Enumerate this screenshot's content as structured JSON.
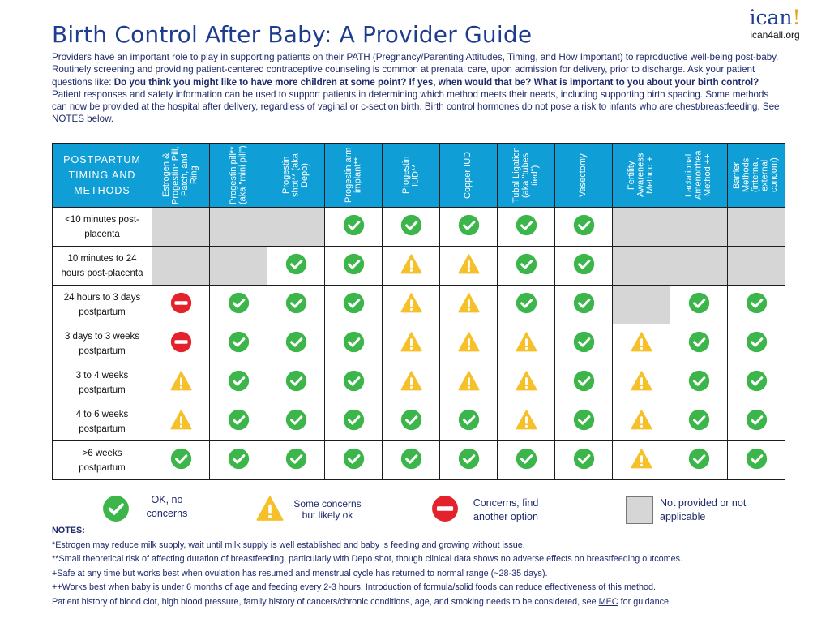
{
  "title": "Birth Control After Baby: A Provider Guide",
  "logo": {
    "mark": "ican",
    "bang": "!",
    "url": "ican4all.org"
  },
  "intro": {
    "p1": "Providers have an important role to play in supporting patients on their PATH (Pregnancy/Parenting Attitudes, Timing, and How Important) to reproductive well-being post-baby. Routinely screening and providing patient-centered contraceptive counseling is common at prenatal care, upon admission for delivery, prior to discharge. Ask your patient questions like: ",
    "bold": "Do you think you might like to have more children at some point? If yes, when would that be? What is important to you about your birth control?",
    "p2": " Patient responses and safety information can be used to support patients in determining which method meets their needs, including supporting birth spacing. Some methods can now be provided at the hospital after delivery, regardless of vaginal or c-section birth.  Birth control hormones do not pose a risk to infants who are chest/breastfeeding. See NOTES below."
  },
  "table": {
    "corner": [
      "POSTPARTUM",
      "TIMING AND",
      "METHODS"
    ],
    "methods": [
      "Estrogen & Progestin* Pill, Patch, and Ring",
      "Progestin pill** (aka \"mini pill\")",
      "Progestin shot** (aka Depo)",
      "Progestin arm implant**",
      "Progestin IUD**",
      "Copper IUD",
      "Tubal Ligation (aka \"tubes tied\")",
      "Vasectomy",
      "Fertility Awareness Method +",
      "Lactational Amenorrhea Method ++",
      "Barrier Methods (internal, external condom)"
    ],
    "rows": [
      {
        "label1": "<10 minutes post-",
        "label2": "placenta",
        "cells": [
          "na",
          "na",
          "na",
          "ok",
          "ok",
          "ok",
          "ok",
          "ok",
          "na",
          "na",
          "na"
        ]
      },
      {
        "label1": "10 minutes to 24",
        "label2": "hours post-placenta",
        "cells": [
          "na",
          "na",
          "ok",
          "ok",
          "warn",
          "warn",
          "ok",
          "ok",
          "na",
          "na",
          "na"
        ]
      },
      {
        "label1": "24 hours to 3  days",
        "label2": "postpartum",
        "cells": [
          "stop",
          "ok",
          "ok",
          "ok",
          "warn",
          "warn",
          "ok",
          "ok",
          "na",
          "ok",
          "ok"
        ]
      },
      {
        "label1": "3 days to 3 weeks",
        "label2": "postpartum",
        "cells": [
          "stop",
          "ok",
          "ok",
          "ok",
          "warn",
          "warn",
          "warn",
          "ok",
          "warn",
          "ok",
          "ok"
        ]
      },
      {
        "label1": "3 to 4 weeks",
        "label2": "postpartum",
        "cells": [
          "warn",
          "ok",
          "ok",
          "ok",
          "warn",
          "warn",
          "warn",
          "ok",
          "warn",
          "ok",
          "ok"
        ]
      },
      {
        "label1": "4 to 6 weeks",
        "label2": "postpartum",
        "cells": [
          "warn",
          "ok",
          "ok",
          "ok",
          "ok",
          "ok",
          "warn",
          "ok",
          "warn",
          "ok",
          "ok"
        ]
      },
      {
        "label1": ">6 weeks",
        "label2": "postpartum",
        "cells": [
          "ok",
          "ok",
          "ok",
          "ok",
          "ok",
          "ok",
          "ok",
          "ok",
          "warn",
          "ok",
          "ok"
        ]
      }
    ]
  },
  "legend": {
    "ok1": "OK, no",
    "ok2": "concerns",
    "warn1": "Some concerns",
    "warn2": "but likely ok",
    "stop1": "Concerns, find",
    "stop2": "another option",
    "na1": "Not provided or not",
    "na2": "applicable"
  },
  "colors": {
    "ok": "#3cb64a",
    "warn": "#f6c02a",
    "stop": "#e3222b",
    "na": "#d6d6d6",
    "header": "#0f9fd6",
    "title": "#1f3d8f"
  },
  "notes": {
    "heading": "NOTES:",
    "n1": "*Estrogen may reduce milk supply,  wait until milk supply is well established and baby is feeding and growing without issue.",
    "n2": "**Small theoretical risk of affecting duration of breastfeeding, particularly with Depo shot, though clinical data shows no adverse effects on breastfeeding outcomes.",
    "n3": "+Safe at any time but works best when ovulation has resumed and menstrual cycle has returned to normal range (~28-35 days).",
    "n4": "++Works best when baby is under 6 months of age and feeding every 2-3 hours. Introduction of formula/solid foods can reduce effectiveness of this method.",
    "n5a": " Patient history of blood clot, high blood pressure, family history of cancers/chronic conditions, age, and smoking needs to be considered, see ",
    "n5link": "MEC",
    "n5b": " for guidance."
  }
}
